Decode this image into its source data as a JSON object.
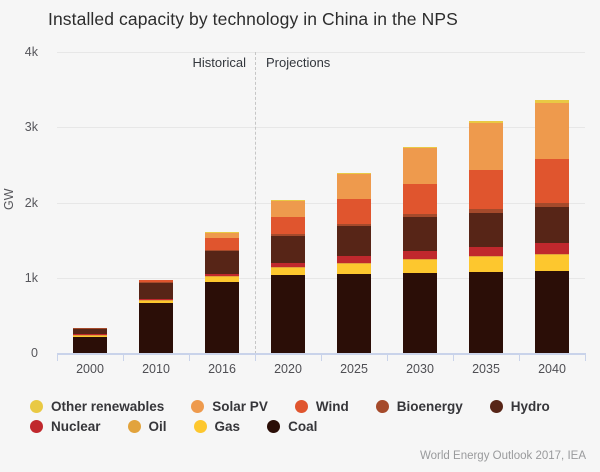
{
  "title": "Installed capacity by technology in China in the NPS",
  "annotations": {
    "historical": "Historical",
    "projections": "Projections"
  },
  "y_axis": {
    "unit": "GW",
    "ticks": [
      "4k",
      "3k",
      "2k",
      "1k",
      "0"
    ],
    "max": 4000
  },
  "footer": "World Energy Outlook 2017, IEA",
  "chart_data": {
    "type": "bar",
    "stacked": true,
    "title": "Installed capacity by technology in China in the NPS",
    "ylabel": "GW",
    "ylim": [
      0,
      4000
    ],
    "grid": "horizontal",
    "categories": [
      "2000",
      "2010",
      "2016",
      "2020",
      "2025",
      "2030",
      "2035",
      "2040"
    ],
    "divider_after_category": "2016",
    "series": [
      {
        "name": "Coal",
        "color": "#2b0e07",
        "values": [
          220,
          660,
          940,
          1030,
          1050,
          1065,
          1075,
          1080
        ]
      },
      {
        "name": "Gas",
        "color": "#fdc72e",
        "values": [
          8,
          33,
          70,
          100,
          140,
          175,
          205,
          230
        ]
      },
      {
        "name": "Oil",
        "color": "#e2a33c",
        "values": [
          19,
          13,
          9,
          8,
          7,
          6,
          5,
          5
        ]
      },
      {
        "name": "Nuclear",
        "color": "#c0282d",
        "values": [
          2,
          11,
          34,
          55,
          85,
          110,
          125,
          140
        ]
      },
      {
        "name": "Hydro",
        "color": "#572517",
        "values": [
          79,
          216,
          305,
          360,
          400,
          445,
          450,
          480
        ]
      },
      {
        "name": "Bioenergy",
        "color": "#a54a2b",
        "values": [
          2,
          4,
          12,
          20,
          28,
          35,
          42,
          50
        ]
      },
      {
        "name": "Wind",
        "color": "#e0552e",
        "values": [
          0,
          30,
          149,
          230,
          330,
          400,
          520,
          580
        ]
      },
      {
        "name": "Solar PV",
        "color": "#ee9a4d",
        "values": [
          0,
          1,
          77,
          220,
          330,
          480,
          630,
          740
        ]
      },
      {
        "name": "Other renewables",
        "color": "#e9c944",
        "values": [
          0,
          0,
          2,
          3,
          8,
          15,
          25,
          40
        ]
      }
    ],
    "legend": {
      "position": "bottom",
      "order": [
        "Other renewables",
        "Solar PV",
        "Wind",
        "Bioenergy",
        "Hydro",
        "Nuclear",
        "Oil",
        "Gas",
        "Coal"
      ]
    }
  }
}
